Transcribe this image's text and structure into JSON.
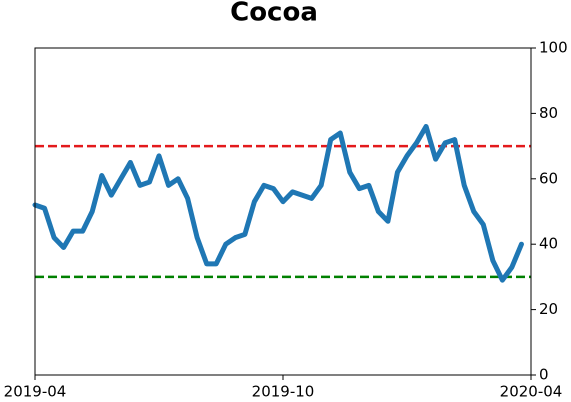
{
  "chart_data": {
    "type": "line",
    "title": "Cocoa",
    "xlim": [
      "2019-04",
      "2020-04"
    ],
    "xticks": [
      "2019-04",
      "2019-10",
      "2020-04"
    ],
    "ylim": [
      0,
      100
    ],
    "yticks": [
      0,
      20,
      40,
      60,
      80,
      100
    ],
    "y_axis_side": "right",
    "color": "#1f77b4",
    "values": [
      52,
      51,
      42,
      39,
      44,
      44,
      50,
      61,
      55,
      60,
      65,
      58,
      59,
      67,
      58,
      60,
      54,
      42,
      34,
      34,
      40,
      42,
      43,
      53,
      58,
      57,
      53,
      56,
      55,
      54,
      58,
      72,
      74,
      62,
      57,
      58,
      50,
      47,
      62,
      67,
      71,
      76,
      66,
      71,
      72,
      58,
      50,
      46,
      35,
      29,
      33,
      40,
      null
    ],
    "hlines": [
      {
        "value": 70,
        "color": "#e31a1c"
      },
      {
        "value": 30,
        "color": "#008000"
      }
    ]
  }
}
